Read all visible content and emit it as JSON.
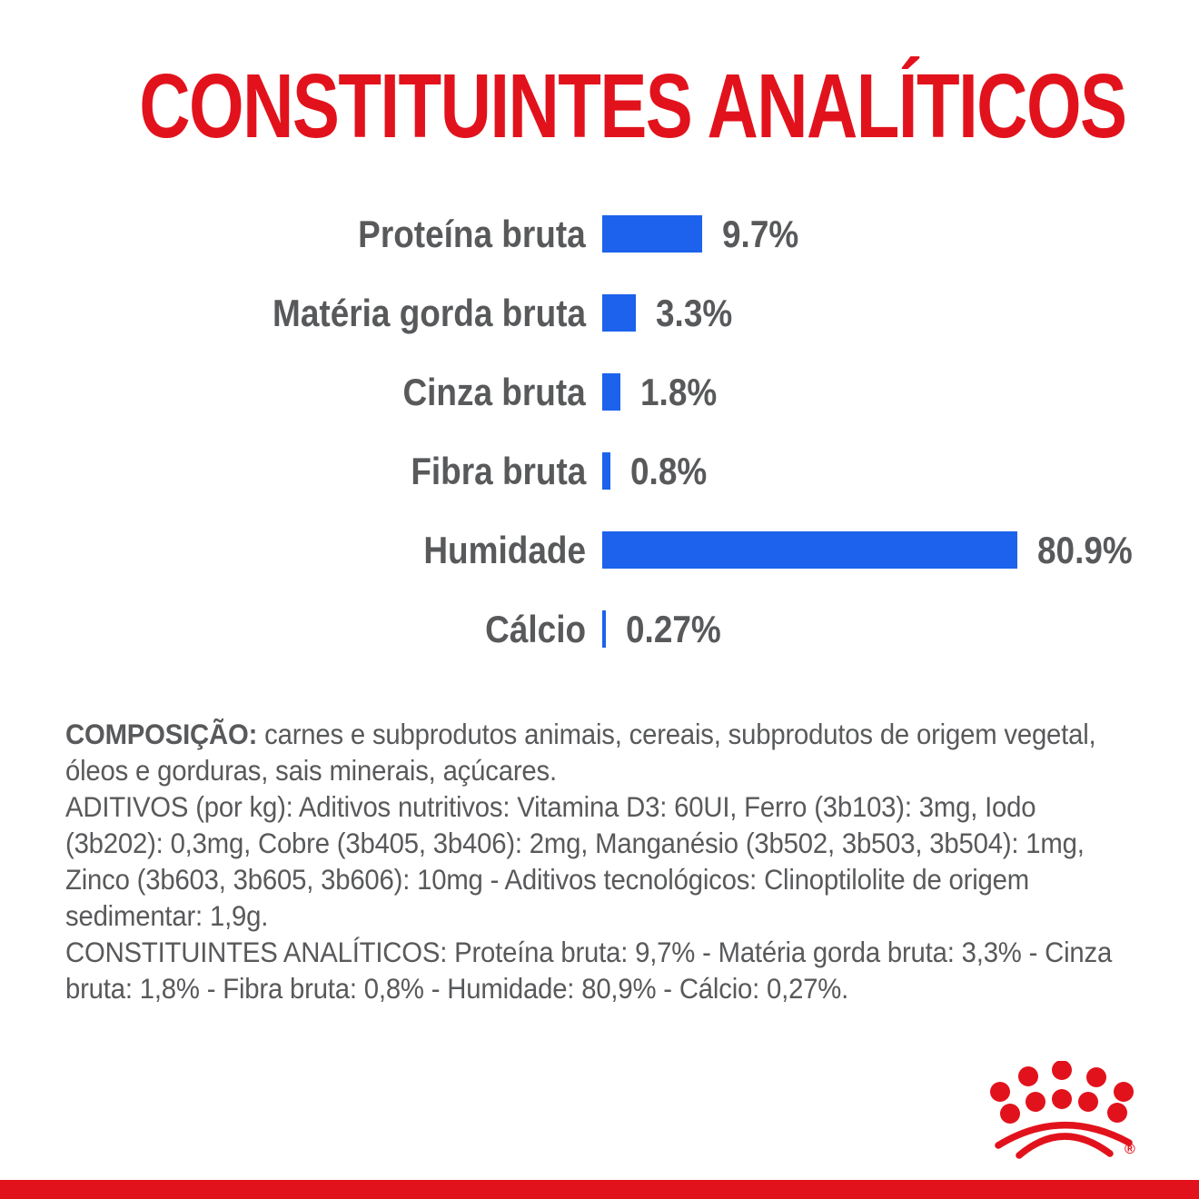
{
  "page": {
    "title": "CONSTITUINTES ANALÍTICOS",
    "colors": {
      "accent_red": "#E2121C",
      "bar_blue": "#1C62EC",
      "text_gray": "#58595B"
    }
  },
  "chart_data": {
    "type": "bar",
    "orientation": "horizontal",
    "title": "CONSTITUINTES ANALÍTICOS",
    "unit": "%",
    "categories": [
      "Proteína bruta",
      "Matéria gorda bruta",
      "Cinza bruta",
      "Fibra bruta",
      "Humidade",
      "Cálcio"
    ],
    "values": [
      9.7,
      3.3,
      1.8,
      0.8,
      80.9,
      0.27
    ],
    "value_labels": [
      "9.7%",
      "3.3%",
      "1.8%",
      "0.8%",
      "80.9%",
      "0.27%"
    ],
    "bar_color": "#1C62EC",
    "label_color": "#58595B",
    "legend": "none",
    "grid": false
  },
  "composition": {
    "p1_label": "COMPOSIÇÃO:",
    "p1_text": " carnes e subprodutos animais, cereais, subprodutos de origem vegetal, óleos e gorduras, sais minerais, açúcares.",
    "p2_text": "ADITIVOS (por kg): Aditivos nutritivos: Vitamina D3: 60UI, Ferro (3b103): 3mg, Iodo (3b202): 0,3mg, Cobre (3b405, 3b406): 2mg, Manganésio (3b502, 3b503, 3b504): 1mg, Zinco (3b603, 3b605, 3b606): 10mg - Aditivos tecnológicos: Clinoptilolite de origem sedimentar: 1,9g.",
    "p3_text": "CONSTITUINTES ANALÍTICOS: Proteína bruta: 9,7% - Matéria gorda bruta: 3,3% - Cinza bruta: 1,8% - Fibra bruta: 0,8% - Humidade: 80,9% - Cálcio: 0,27%."
  },
  "logo": {
    "name": "royal-canin-crown",
    "registered_mark": "®"
  }
}
